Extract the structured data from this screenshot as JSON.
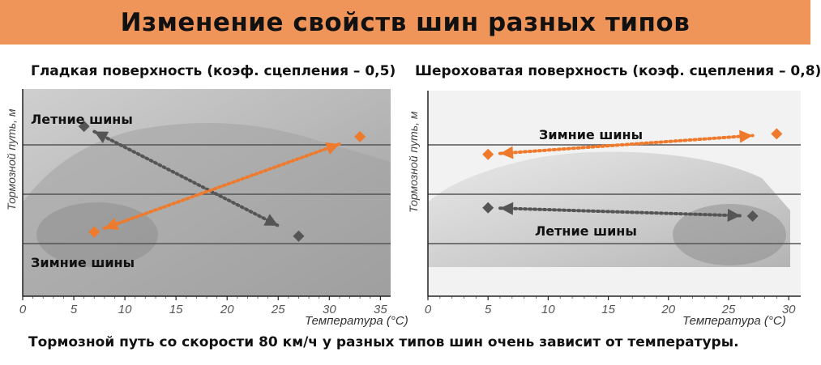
{
  "title": "Изменение свойств шин разных типов",
  "footer": "Тормозной путь со скорости 80 км/ч у разных типов шин очень зависит от температуры.",
  "colors": {
    "banner": "#f0955a",
    "summer": "#555555",
    "winter": "#ef7a2c",
    "grid": "#555555"
  },
  "chart_data": [
    {
      "type": "scatter",
      "title": "Гладкая поверхность (коэф. сцепления – 0,5)",
      "xlabel": "Температура (°C)",
      "ylabel": "Тормозной путь, м",
      "xticks": [
        0,
        5,
        10,
        15,
        20,
        25,
        30,
        35
      ],
      "xlim": [
        0,
        36
      ],
      "ylim": [
        0,
        1
      ],
      "series": [
        {
          "name": "Летние шины",
          "points": [
            [
              6,
              0.82
            ],
            [
              27,
              0.29
            ]
          ],
          "annotations": [
            {
              "from": 7,
              "to": 25,
              "arrow": "both"
            }
          ]
        },
        {
          "name": "Зимние шины",
          "points": [
            [
              7,
              0.31
            ],
            [
              33,
              0.77
            ]
          ],
          "annotations": [
            {
              "from": 8,
              "to": 31,
              "arrow": "both"
            }
          ]
        }
      ]
    },
    {
      "type": "scatter",
      "title": "Шероховатая поверхность (коэф. сцепления – 0,8)",
      "xlabel": "Температура (°C)",
      "ylabel": "Тормозной путь, м",
      "xticks": [
        0,
        5,
        10,
        15,
        20,
        25,
        30
      ],
      "xlim": [
        0,
        31
      ],
      "ylim": [
        0,
        1
      ],
      "series": [
        {
          "name": "Зимние шины",
          "points": [
            [
              5,
              0.69
            ],
            [
              29,
              0.79
            ]
          ],
          "annotations": [
            {
              "from": 6,
              "to": 27,
              "arrow": "both"
            }
          ]
        },
        {
          "name": "Летние шины",
          "points": [
            [
              5,
              0.43
            ],
            [
              27,
              0.39
            ]
          ],
          "annotations": [
            {
              "from": 6,
              "to": 26,
              "arrow": "both"
            }
          ]
        }
      ]
    }
  ]
}
